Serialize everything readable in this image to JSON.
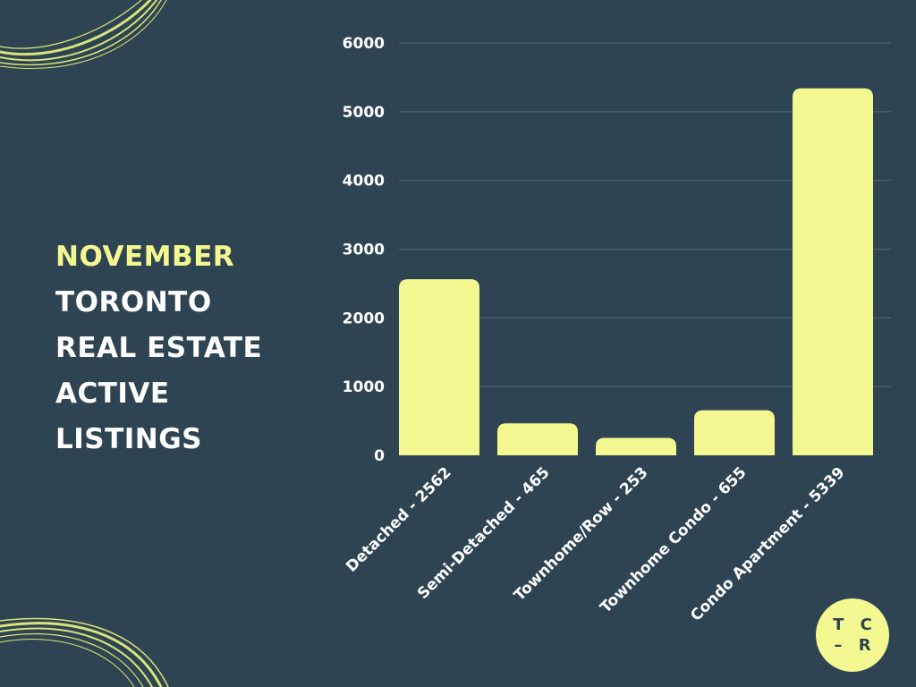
{
  "title": {
    "highlight": "NOVEMBER",
    "lines": [
      "TORONTO",
      "REAL ESTATE",
      "ACTIVE",
      "LISTINGS"
    ]
  },
  "logo": {
    "line1": "T C",
    "line2": "– R"
  },
  "colors": {
    "background": "#2f4452",
    "accent": "#f4f890",
    "text": "#ffffff",
    "grid": "#53656f"
  },
  "chart_data": {
    "type": "bar",
    "categories": [
      "Detached - 2562",
      "Semi-Detached - 465",
      "Townhome/Row - 253",
      "Townhome Condo - 655",
      "Condo Apartment - 5339"
    ],
    "values": [
      2562,
      465,
      253,
      655,
      5339
    ],
    "yticks": [
      0,
      1000,
      2000,
      3000,
      4000,
      5000,
      6000
    ],
    "ylim": [
      0,
      6000
    ],
    "grid": true,
    "bar_color": "#f4f890"
  }
}
